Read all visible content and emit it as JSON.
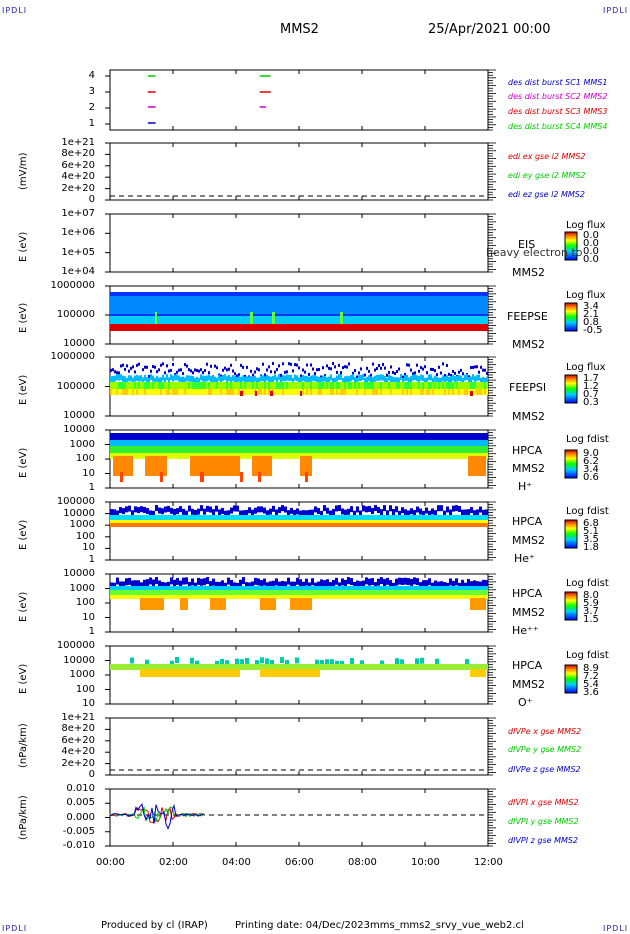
{
  "header": {
    "corner_labels": [
      "IPDLI",
      "IPDLI",
      "IPDLI",
      "IPDLI"
    ],
    "spacecraft": "MMS2",
    "datetime": "25/Apr/2021 00:00"
  },
  "footer": {
    "produced_by": "Produced by cl (IRAP)",
    "printing_date": "Printing date: 04/Dec/2023",
    "script_name": "mms_mms2_srvy_vue_web2.cl"
  },
  "x_axis": {
    "ticks": [
      "00:00",
      "02:00",
      "04:00",
      "06:00",
      "08:00",
      "10:00",
      "12:00"
    ]
  },
  "colors": {
    "red": "#dd0000",
    "magenta": "#cc00cc",
    "green": "#00cc00",
    "blue": "#0000cc",
    "frame": "#000000"
  },
  "panels": [
    {
      "id": "burst",
      "ylabel": "",
      "yticks": [
        "4",
        "3",
        "2",
        "1"
      ],
      "legend": [
        "des dist burst SC1 MMS1",
        "des dist burst SC2 MMS2",
        "des dist burst SC3 MMS3",
        "des dist burst SC4 MMS4"
      ]
    },
    {
      "id": "edi",
      "ylabel": "(mV/m)",
      "yticks": [
        "1e+21",
        "8e+20",
        "6e+20",
        "4e+20",
        "2e+20",
        "0"
      ],
      "legend": [
        "edi ex gse l2 MMS2",
        "edi ey gse l2 MMS2",
        "edi ez gse l2 MMS2"
      ]
    },
    {
      "id": "eis",
      "ylabel": "E (eV)",
      "yticks": [
        "1e+07",
        "1e+06",
        "1e+05",
        "1e+04"
      ],
      "inst": [
        "EIS",
        "MMS2"
      ],
      "overlay": "heavy electron to",
      "cb_title": "Log flux",
      "cb_ticks": [
        "0.0",
        "0.0",
        "0.0",
        "0.0"
      ]
    },
    {
      "id": "feepse",
      "ylabel": "E (eV)",
      "yticks": [
        "1000000",
        "100000",
        "10000"
      ],
      "inst": [
        "FEEPSE",
        "MMS2"
      ],
      "cb_title": "Log flux",
      "cb_ticks": [
        "3.4",
        "2.1",
        "0.8",
        "-0.5"
      ]
    },
    {
      "id": "feepsi",
      "ylabel": "E (eV)",
      "yticks": [
        "1000000",
        "100000",
        "10000"
      ],
      "inst": [
        "FEEPSI",
        "MMS2"
      ],
      "cb_title": "Log flux",
      "cb_ticks": [
        "1.7",
        "1.2",
        "0.7",
        "0.3"
      ]
    },
    {
      "id": "hpca_h",
      "ylabel": "E (eV)",
      "yticks": [
        "10000",
        "1000",
        "100",
        "10",
        "1"
      ],
      "inst": [
        "HPCA",
        "MMS2",
        "H⁺"
      ],
      "cb_title": "Log fdist",
      "cb_ticks": [
        "9.0",
        "6.2",
        "3.4",
        "0.6"
      ]
    },
    {
      "id": "hpca_he",
      "ylabel": "E (eV)",
      "yticks": [
        "100000",
        "10000",
        "1000",
        "100",
        "10",
        "1"
      ],
      "inst": [
        "HPCA",
        "MMS2",
        "He⁺"
      ],
      "cb_title": "Log fdist",
      "cb_ticks": [
        "6.8",
        "5.1",
        "3.5",
        "1.8"
      ]
    },
    {
      "id": "hpca_hepp",
      "ylabel": "E (eV)",
      "yticks": [
        "10000",
        "1000",
        "100",
        "10",
        "1"
      ],
      "inst": [
        "HPCA",
        "MMS2",
        "He⁺⁺"
      ],
      "cb_title": "Log fdist",
      "cb_ticks": [
        "8.0",
        "5.9",
        "3.7",
        "1.5"
      ]
    },
    {
      "id": "hpca_o",
      "ylabel": "E (eV)",
      "yticks": [
        "100000",
        "10000",
        "1000",
        "100",
        "10"
      ],
      "inst": [
        "HPCA",
        "MMS2",
        "O⁺"
      ],
      "cb_title": "Log fdist",
      "cb_ticks": [
        "8.9",
        "7.2",
        "5.4",
        "3.6"
      ]
    },
    {
      "id": "divpe",
      "ylabel": "(nPa/km)",
      "yticks": [
        "1e+21",
        "8e+20",
        "6e+20",
        "4e+20",
        "2e+20",
        "0"
      ],
      "legend": [
        "dIVPe x gse MMS2",
        "dIVPe y gse MMS2",
        "dIVPe z gse MMS2"
      ]
    },
    {
      "id": "divpi",
      "ylabel": "(nPa/km)",
      "yticks": [
        "0.010",
        "0.005",
        "0.000",
        "-0.005",
        "-0.010"
      ],
      "legend": [
        "dIVPI x gse MMS2",
        "dIVPI y gse MMS2",
        "dIVPI z gse MMS2"
      ]
    }
  ],
  "chart_data": {
    "type": "heatmap",
    "x_range_hours": [
      0,
      12
    ],
    "burst_segments": [
      {
        "sc": 4,
        "start": 1.2,
        "end": 1.45
      },
      {
        "sc": 4,
        "start": 4.75,
        "end": 5.1
      },
      {
        "sc": 3,
        "start": 1.2,
        "end": 1.45
      },
      {
        "sc": 3,
        "start": 4.75,
        "end": 5.1
      },
      {
        "sc": 2,
        "start": 1.2,
        "end": 1.45
      },
      {
        "sc": 2,
        "start": 4.75,
        "end": 4.95
      },
      {
        "sc": 1,
        "start": 1.2,
        "end": 1.45
      }
    ],
    "divpi_data_end_hours": 3.0
  }
}
